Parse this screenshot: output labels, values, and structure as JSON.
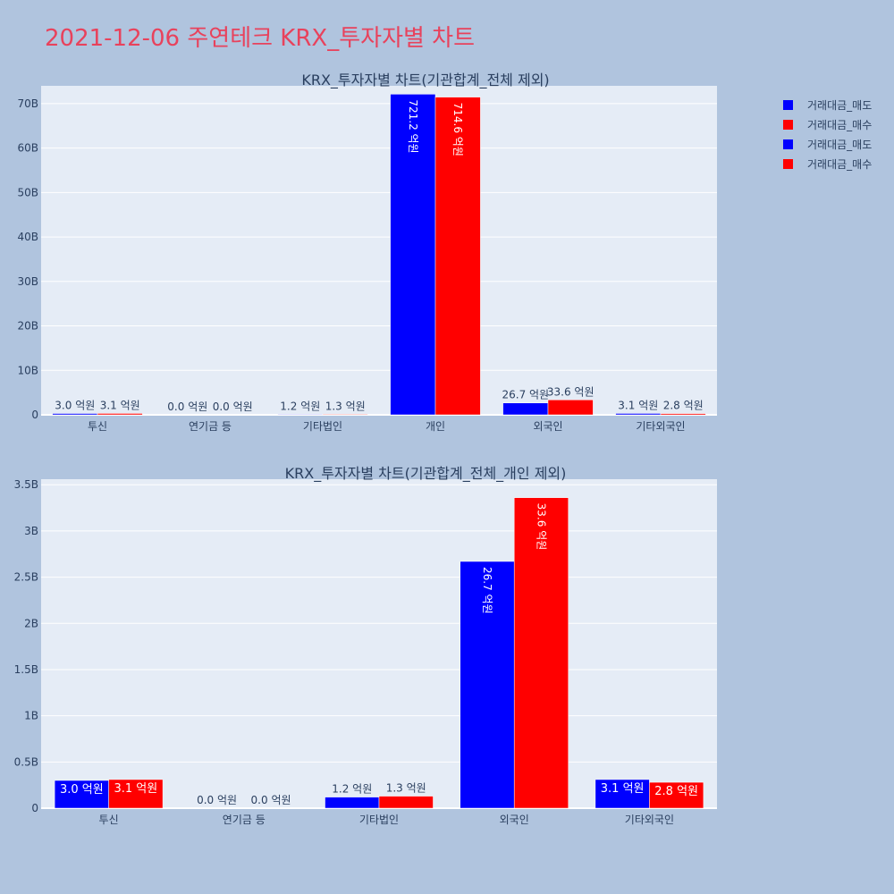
{
  "page": {
    "title": "2021-12-06 주연테크 KRX_투자자별 차트"
  },
  "colors": {
    "sell": "#0000ff",
    "buy": "#ff0000",
    "plot_bg": "#e5ecf6",
    "page_bg": "#b0c4de",
    "text": "#2a3f5f"
  },
  "legend": {
    "placement": "top-right",
    "items": [
      {
        "label": "거래대금_매도",
        "color": "#0000ff"
      },
      {
        "label": "거래대금_매수",
        "color": "#ff0000"
      },
      {
        "label": "거래대금_매도",
        "color": "#0000ff"
      },
      {
        "label": "거래대금_매수",
        "color": "#ff0000"
      }
    ]
  },
  "chart_data": [
    {
      "type": "bar",
      "title": "KRX_투자자별 차트(기관합계_전체 제외)",
      "categories": [
        "투신",
        "연기금 등",
        "기타법인",
        "개인",
        "외국인",
        "기타외국인"
      ],
      "series": [
        {
          "name": "거래대금_매도",
          "color": "#0000ff",
          "values": [
            300000000,
            0,
            120000000,
            72120000000,
            2670000000,
            310000000
          ],
          "labels": [
            "3.0 억원",
            "0.0 억원",
            "1.2 억원",
            "721.2 억원",
            "26.7 억원",
            "3.1 억원"
          ]
        },
        {
          "name": "거래대금_매수",
          "color": "#ff0000",
          "values": [
            310000000,
            0,
            130000000,
            71460000000,
            3360000000,
            280000000
          ],
          "labels": [
            "3.1 억원",
            "0.0 억원",
            "1.3 억원",
            "714.6 억원",
            "33.6 억원",
            "2.8 억원"
          ]
        }
      ],
      "ylim": [
        0,
        74000000000
      ],
      "yticks": [
        {
          "value": 0,
          "label": "0"
        },
        {
          "value": 10000000000,
          "label": "10B"
        },
        {
          "value": 20000000000,
          "label": "20B"
        },
        {
          "value": 30000000000,
          "label": "30B"
        },
        {
          "value": 40000000000,
          "label": "40B"
        },
        {
          "value": 50000000000,
          "label": "50B"
        },
        {
          "value": 60000000000,
          "label": "60B"
        },
        {
          "value": 70000000000,
          "label": "70B"
        }
      ],
      "grid": true
    },
    {
      "type": "bar",
      "title": "KRX_투자자별 차트(기관합계_전체_개인 제외)",
      "categories": [
        "투신",
        "연기금 등",
        "기타법인",
        "외국인",
        "기타외국인"
      ],
      "series": [
        {
          "name": "거래대금_매도",
          "color": "#0000ff",
          "values": [
            300000000,
            0,
            120000000,
            2670000000,
            310000000
          ],
          "labels": [
            "3.0 억원",
            "0.0 억원",
            "1.2 억원",
            "26.7 억원",
            "3.1 억원"
          ]
        },
        {
          "name": "거래대금_매수",
          "color": "#ff0000",
          "values": [
            310000000,
            0,
            130000000,
            3360000000,
            280000000
          ],
          "labels": [
            "3.1 억원",
            "0.0 억원",
            "1.3 억원",
            "33.6 억원",
            "2.8 억원"
          ]
        }
      ],
      "ylim": [
        0,
        3560000000
      ],
      "yticks": [
        {
          "value": 0,
          "label": "0"
        },
        {
          "value": 500000000,
          "label": "0.5B"
        },
        {
          "value": 1000000000,
          "label": "1B"
        },
        {
          "value": 1500000000,
          "label": "1.5B"
        },
        {
          "value": 2000000000,
          "label": "2B"
        },
        {
          "value": 2500000000,
          "label": "2.5B"
        },
        {
          "value": 3000000000,
          "label": "3B"
        },
        {
          "value": 3500000000,
          "label": "3.5B"
        }
      ],
      "grid": true
    }
  ]
}
